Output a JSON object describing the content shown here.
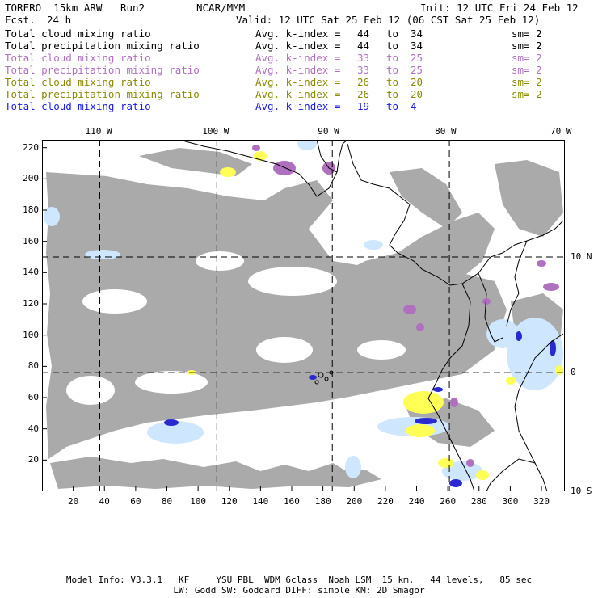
{
  "header": {
    "model": "TORERO  15km ARW   Run2",
    "org": "NCAR/MMM",
    "init": "Init: 12 UTC Fri 24 Feb 12",
    "fcst_label": "Fcst.",
    "fcst_value": "24 h",
    "valid": "Valid: 12 UTC Sat 25 Feb 12 (06 CST Sat 25 Feb 12)"
  },
  "legend": [
    {
      "field": "Total cloud mixing ratio",
      "kindex": "Avg. k-index = ",
      "k1": "44",
      "to": "to",
      "k2": "34",
      "sm": "sm= 2",
      "color": "#000000"
    },
    {
      "field": "Total precipitation mixing ratio",
      "kindex": "Avg. k-index = ",
      "k1": "44",
      "to": "to",
      "k2": "34",
      "sm": "sm= 2",
      "color": "#000000"
    },
    {
      "field": "Total cloud mixing ratio",
      "kindex": "Avg. k-index = ",
      "k1": "33",
      "to": "to",
      "k2": "25",
      "sm": "sm= 2",
      "color": "#b070c0"
    },
    {
      "field": "Total precipitation mixing ratio",
      "kindex": "Avg. k-index = ",
      "k1": "33",
      "to": "to",
      "k2": "25",
      "sm": "sm= 2",
      "color": "#b070c0"
    },
    {
      "field": "Total cloud mixing ratio",
      "kindex": "Avg. k-index = ",
      "k1": "26",
      "to": "to",
      "k2": "20",
      "sm": "sm= 2",
      "color": "#8a8a00"
    },
    {
      "field": "Total precipitation mixing ratio",
      "kindex": "Avg. k-index = ",
      "k1": "26",
      "to": "to",
      "k2": "20",
      "sm": "sm= 2",
      "color": "#8a8a00"
    },
    {
      "field": "Total cloud mixing ratio",
      "kindex": "Avg. k-index = ",
      "k1": "19",
      "to": "to",
      "k2": "4",
      "sm": "",
      "color": "#1a1aee"
    }
  ],
  "map": {
    "x_range": [
      0,
      335
    ],
    "y_range": [
      0,
      225
    ],
    "x_ticks": [
      "20",
      "40",
      "60",
      "80",
      "100",
      "120",
      "140",
      "160",
      "180",
      "200",
      "220",
      "240",
      "260",
      "280",
      "300",
      "320"
    ],
    "y_ticks": [
      "20",
      "40",
      "60",
      "80",
      "100",
      "120",
      "140",
      "160",
      "180",
      "200",
      "220"
    ],
    "lon_labels": [
      "110 W",
      "100 W",
      "90 W",
      "80 W",
      "70 W"
    ],
    "lon_values": [
      37,
      112,
      186,
      261,
      335
    ],
    "lat_labels": [
      "10 N",
      "0",
      "10 S"
    ],
    "lat_values": [
      150,
      76,
      0
    ],
    "colors": {
      "gray": "#aaaaaa",
      "violet": "#b070c0",
      "yellow": "#ffff55",
      "lightblue": "#cfe6ff",
      "blue": "#2a2ad0",
      "white": "#ffffff"
    }
  },
  "footer": {
    "line1": "Model Info: V3.3.1   KF     YSU PBL  WDM 6class  Noah LSM  15 km,   44 levels,   85 sec",
    "line2": "LW: Godd SW: Goddard DIFF: simple KM: 2D Smagor"
  }
}
